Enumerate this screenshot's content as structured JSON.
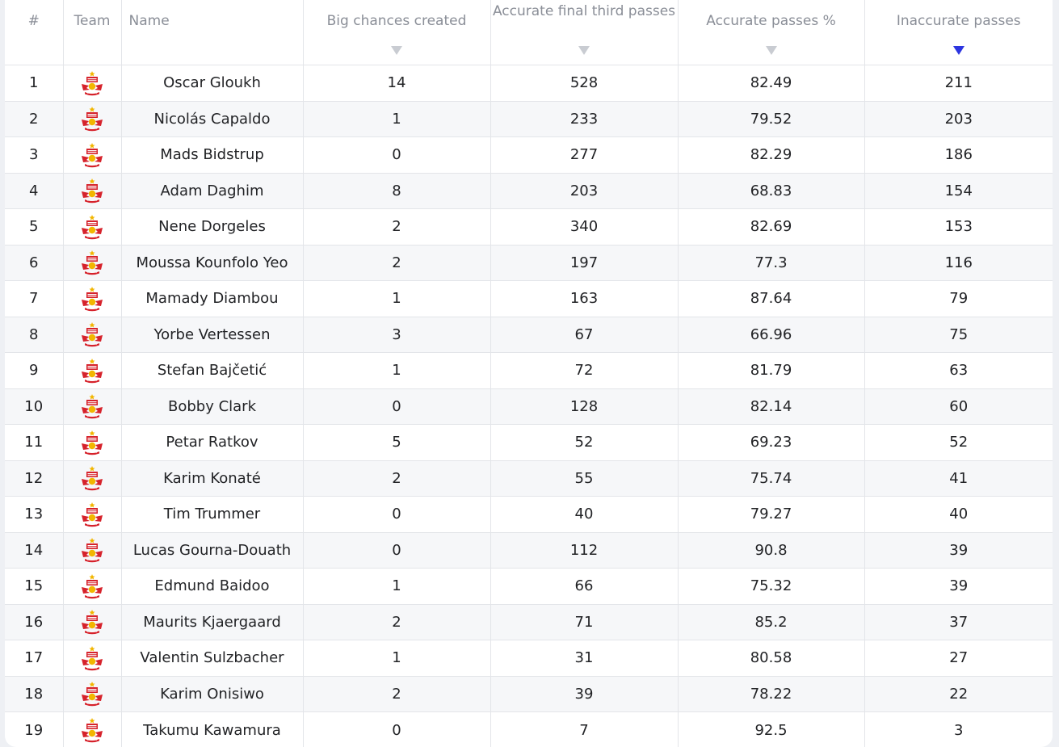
{
  "columns": {
    "rank": "#",
    "team": "Team",
    "name": "Name",
    "big_chances": "Big chances created",
    "final_third": "Accurate final third passes",
    "accurate_pct": "Accurate passes %",
    "inaccurate": "Inaccurate passes"
  },
  "sort": {
    "column": "inaccurate",
    "direction": "descending",
    "active_color": "#2c35e0",
    "inactive_color": "#c9ccd2"
  },
  "team_icon": "red-bull-salzburg-crest-icon",
  "rows": [
    {
      "rank": "1",
      "name": "Oscar Gloukh",
      "big_chances": "14",
      "final_third": "528",
      "accurate_pct": "82.49",
      "inaccurate": "211"
    },
    {
      "rank": "2",
      "name": "Nicolás Capaldo",
      "big_chances": "1",
      "final_third": "233",
      "accurate_pct": "79.52",
      "inaccurate": "203"
    },
    {
      "rank": "3",
      "name": "Mads Bidstrup",
      "big_chances": "0",
      "final_third": "277",
      "accurate_pct": "82.29",
      "inaccurate": "186"
    },
    {
      "rank": "4",
      "name": "Adam Daghim",
      "big_chances": "8",
      "final_third": "203",
      "accurate_pct": "68.83",
      "inaccurate": "154"
    },
    {
      "rank": "5",
      "name": "Nene Dorgeles",
      "big_chances": "2",
      "final_third": "340",
      "accurate_pct": "82.69",
      "inaccurate": "153"
    },
    {
      "rank": "6",
      "name": "Moussa Kounfolo Yeo",
      "big_chances": "2",
      "final_third": "197",
      "accurate_pct": "77.3",
      "inaccurate": "116"
    },
    {
      "rank": "7",
      "name": "Mamady Diambou",
      "big_chances": "1",
      "final_third": "163",
      "accurate_pct": "87.64",
      "inaccurate": "79"
    },
    {
      "rank": "8",
      "name": "Yorbe Vertessen",
      "big_chances": "3",
      "final_third": "67",
      "accurate_pct": "66.96",
      "inaccurate": "75"
    },
    {
      "rank": "9",
      "name": "Stefan Bajčetić",
      "big_chances": "1",
      "final_third": "72",
      "accurate_pct": "81.79",
      "inaccurate": "63"
    },
    {
      "rank": "10",
      "name": "Bobby Clark",
      "big_chances": "0",
      "final_third": "128",
      "accurate_pct": "82.14",
      "inaccurate": "60"
    },
    {
      "rank": "11",
      "name": "Petar Ratkov",
      "big_chances": "5",
      "final_third": "52",
      "accurate_pct": "69.23",
      "inaccurate": "52"
    },
    {
      "rank": "12",
      "name": "Karim Konaté",
      "big_chances": "2",
      "final_third": "55",
      "accurate_pct": "75.74",
      "inaccurate": "41"
    },
    {
      "rank": "13",
      "name": "Tim Trummer",
      "big_chances": "0",
      "final_third": "40",
      "accurate_pct": "79.27",
      "inaccurate": "40"
    },
    {
      "rank": "14",
      "name": "Lucas Gourna-Douath",
      "big_chances": "0",
      "final_third": "112",
      "accurate_pct": "90.8",
      "inaccurate": "39"
    },
    {
      "rank": "15",
      "name": "Edmund Baidoo",
      "big_chances": "1",
      "final_third": "66",
      "accurate_pct": "75.32",
      "inaccurate": "39"
    },
    {
      "rank": "16",
      "name": "Maurits Kjaergaard",
      "big_chances": "2",
      "final_third": "71",
      "accurate_pct": "85.2",
      "inaccurate": "37"
    },
    {
      "rank": "17",
      "name": "Valentin Sulzbacher",
      "big_chances": "1",
      "final_third": "31",
      "accurate_pct": "80.58",
      "inaccurate": "27"
    },
    {
      "rank": "18",
      "name": "Karim Onisiwo",
      "big_chances": "2",
      "final_third": "39",
      "accurate_pct": "78.22",
      "inaccurate": "22"
    },
    {
      "rank": "19",
      "name": "Takumu Kawamura",
      "big_chances": "0",
      "final_third": "7",
      "accurate_pct": "92.5",
      "inaccurate": "3"
    }
  ]
}
